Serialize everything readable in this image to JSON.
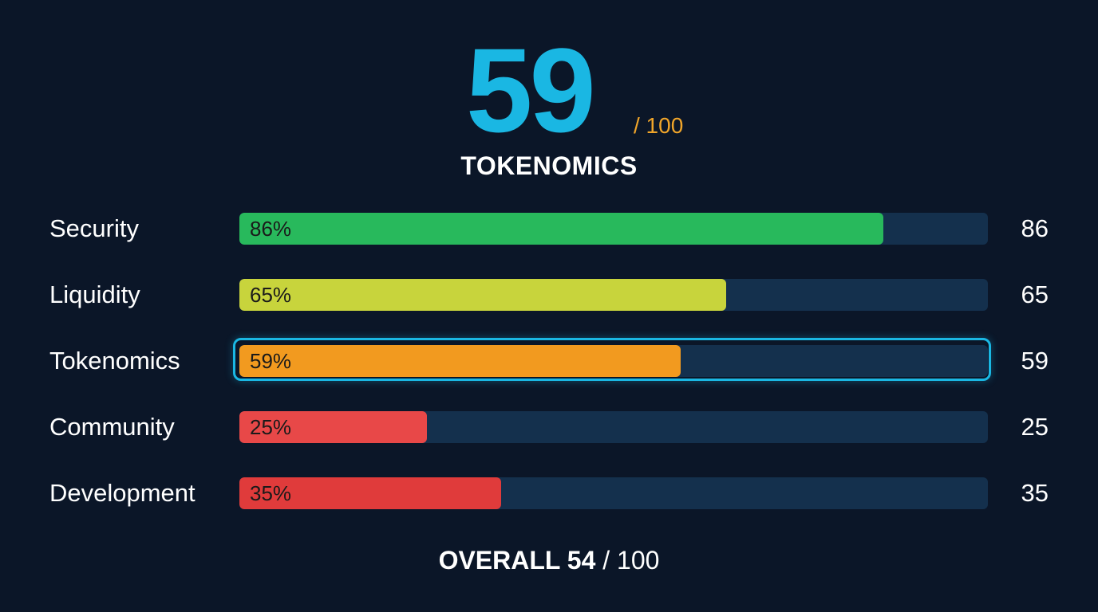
{
  "hero": {
    "score": "59",
    "max": "/ 100",
    "label": "TOKENOMICS"
  },
  "chart_data": {
    "type": "bar",
    "orientation": "horizontal",
    "categories": [
      "Security",
      "Liquidity",
      "Tokenomics",
      "Community",
      "Development"
    ],
    "values": [
      86,
      65,
      59,
      25,
      35
    ],
    "bar_labels": [
      "86%",
      "65%",
      "59%",
      "25%",
      "35%"
    ],
    "value_labels": [
      "86",
      "65",
      "59",
      "25",
      "35"
    ],
    "xlim": [
      0,
      100
    ],
    "colors": [
      "#28b95c",
      "#c8d43c",
      "#f29a1f",
      "#e84848",
      "#e03b3b"
    ],
    "highlighted": "Tokenomics",
    "highlight_color": "#1ab7e3",
    "track_color": "#14304d"
  },
  "overall": {
    "label": "OVERALL 54",
    "suffix": " / 100"
  }
}
